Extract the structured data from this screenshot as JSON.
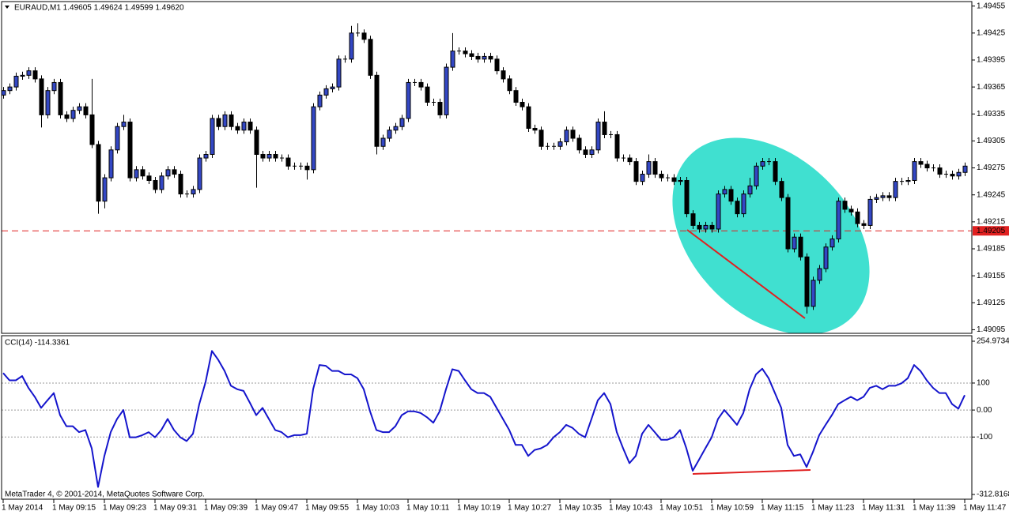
{
  "chart_data": [
    {
      "type": "candlestick",
      "title": "EURAUD,M1  1.49605 1.49624 1.49599 1.49620",
      "up_color": "#3347c4",
      "down_color": "#000000",
      "price_line": 1.49205,
      "price_line_color": "#e02020",
      "ylim": [
        1.49091,
        1.4946
      ],
      "yticks": [
        1.49455,
        1.49425,
        1.49395,
        1.49365,
        1.49335,
        1.49305,
        1.49275,
        1.49245,
        1.49215,
        1.49185,
        1.49155,
        1.49125,
        1.49095
      ],
      "xticks": [
        {
          "value": 0,
          "label": "1 May 2014"
        },
        {
          "value": 8,
          "label": "1 May 09:15"
        },
        {
          "value": 16,
          "label": "1 May 09:23"
        },
        {
          "value": 24,
          "label": "1 May 09:31"
        },
        {
          "value": 32,
          "label": "1 May 09:39"
        },
        {
          "value": 40,
          "label": "1 May 09:47"
        },
        {
          "value": 48,
          "label": "1 May 09:55"
        },
        {
          "value": 56,
          "label": "1 May 10:03"
        },
        {
          "value": 64,
          "label": "1 May 10:11"
        },
        {
          "value": 72,
          "label": "1 May 10:19"
        },
        {
          "value": 80,
          "label": "1 May 10:27"
        },
        {
          "value": 88,
          "label": "1 May 10:35"
        },
        {
          "value": 96,
          "label": "1 May 10:43"
        },
        {
          "value": 104,
          "label": "1 May 10:51"
        },
        {
          "value": 112,
          "label": "1 May 10:59"
        },
        {
          "value": 120,
          "label": "1 May 11:15"
        },
        {
          "value": 128,
          "label": "1 May 11:23"
        },
        {
          "value": 136,
          "label": "1 May 11:31"
        },
        {
          "value": 144,
          "label": "1 May 11:39"
        },
        {
          "value": 152,
          "label": "1 May 11:47"
        }
      ],
      "ohlc": [
        [
          1.49356,
          1.49365,
          1.49352,
          1.49361
        ],
        [
          1.49361,
          1.49369,
          1.49357,
          1.49365
        ],
        [
          1.49365,
          1.49381,
          1.49361,
          1.49377
        ],
        [
          1.49377,
          1.49382,
          1.49373,
          1.49378
        ],
        [
          1.49378,
          1.49387,
          1.49374,
          1.49383
        ],
        [
          1.49383,
          1.49387,
          1.4937,
          1.49374
        ],
        [
          1.49374,
          1.49378,
          1.4932,
          1.49334
        ],
        [
          1.49334,
          1.49365,
          1.4933,
          1.49361
        ],
        [
          1.49361,
          1.49374,
          1.49357,
          1.4937
        ],
        [
          1.4937,
          1.49374,
          1.4933,
          1.49334
        ],
        [
          1.49334,
          1.49338,
          1.49326,
          1.4933
        ],
        [
          1.4933,
          1.49343,
          1.49326,
          1.49339
        ],
        [
          1.49339,
          1.49347,
          1.49335,
          1.49343
        ],
        [
          1.49343,
          1.49347,
          1.4933,
          1.49334
        ],
        [
          1.49334,
          1.49374,
          1.49297,
          1.49301
        ],
        [
          1.49301,
          1.49305,
          1.49224,
          1.49238
        ],
        [
          1.49238,
          1.49268,
          1.4923,
          1.49264
        ],
        [
          1.49264,
          1.49299,
          1.4926,
          1.49295
        ],
        [
          1.49295,
          1.49325,
          1.49291,
          1.49321
        ],
        [
          1.49321,
          1.49334,
          1.49317,
          1.49326
        ],
        [
          1.49326,
          1.4933,
          1.4926,
          1.49264
        ],
        [
          1.49264,
          1.49277,
          1.4926,
          1.49273
        ],
        [
          1.49273,
          1.49277,
          1.49262,
          1.49266
        ],
        [
          1.49266,
          1.4927,
          1.49257,
          1.49261
        ],
        [
          1.49261,
          1.49265,
          1.49247,
          1.49251
        ],
        [
          1.49251,
          1.4927,
          1.49247,
          1.49266
        ],
        [
          1.49266,
          1.49277,
          1.49262,
          1.49273
        ],
        [
          1.49273,
          1.49277,
          1.49264,
          1.49268
        ],
        [
          1.49268,
          1.49272,
          1.49242,
          1.49246
        ],
        [
          1.49246,
          1.4925,
          1.49242,
          1.49246
        ],
        [
          1.49246,
          1.49255,
          1.49242,
          1.49251
        ],
        [
          1.49251,
          1.4929,
          1.49247,
          1.49286
        ],
        [
          1.49286,
          1.49294,
          1.49282,
          1.4929
        ],
        [
          1.4929,
          1.49334,
          1.49286,
          1.4933
        ],
        [
          1.4933,
          1.49334,
          1.49317,
          1.49321
        ],
        [
          1.49321,
          1.49338,
          1.49317,
          1.49334
        ],
        [
          1.49334,
          1.49338,
          1.49317,
          1.49321
        ],
        [
          1.49321,
          1.49325,
          1.49313,
          1.49317
        ],
        [
          1.49317,
          1.4933,
          1.49313,
          1.49326
        ],
        [
          1.49326,
          1.4933,
          1.49313,
          1.49317
        ],
        [
          1.49317,
          1.49321,
          1.49253,
          1.4929
        ],
        [
          1.4929,
          1.49294,
          1.49282,
          1.49286
        ],
        [
          1.49286,
          1.49294,
          1.49282,
          1.4929
        ],
        [
          1.4929,
          1.49294,
          1.49282,
          1.49286
        ],
        [
          1.49286,
          1.4929,
          1.49282,
          1.49286
        ],
        [
          1.49286,
          1.4929,
          1.49273,
          1.49277
        ],
        [
          1.49277,
          1.49281,
          1.49273,
          1.49277
        ],
        [
          1.49277,
          1.49281,
          1.49273,
          1.49277
        ],
        [
          1.49277,
          1.49281,
          1.49262,
          1.49273
        ],
        [
          1.49273,
          1.49347,
          1.49269,
          1.49343
        ],
        [
          1.49343,
          1.4936,
          1.49339,
          1.49356
        ],
        [
          1.49356,
          1.49367,
          1.49352,
          1.49363
        ],
        [
          1.49363,
          1.49369,
          1.49359,
          1.49365
        ],
        [
          1.49365,
          1.494,
          1.49361,
          1.49396
        ],
        [
          1.49396,
          1.494,
          1.49392,
          1.49396
        ],
        [
          1.49396,
          1.49433,
          1.49392,
          1.49425
        ],
        [
          1.49425,
          1.49436,
          1.49421,
          1.49425
        ],
        [
          1.49425,
          1.49429,
          1.49414,
          1.49418
        ],
        [
          1.49418,
          1.49422,
          1.49374,
          1.49378
        ],
        [
          1.49378,
          1.49382,
          1.4929,
          1.49299
        ],
        [
          1.49299,
          1.49312,
          1.49295,
          1.49308
        ],
        [
          1.49308,
          1.49321,
          1.49304,
          1.49317
        ],
        [
          1.49317,
          1.49325,
          1.49313,
          1.49321
        ],
        [
          1.49321,
          1.49334,
          1.49317,
          1.4933
        ],
        [
          1.4933,
          1.49374,
          1.49326,
          1.4937
        ],
        [
          1.4937,
          1.49374,
          1.49366,
          1.4937
        ],
        [
          1.4937,
          1.49374,
          1.49361,
          1.49365
        ],
        [
          1.49365,
          1.49369,
          1.49344,
          1.49348
        ],
        [
          1.49348,
          1.49352,
          1.49344,
          1.49348
        ],
        [
          1.49348,
          1.49352,
          1.4933,
          1.49334
        ],
        [
          1.49334,
          1.49391,
          1.4933,
          1.49387
        ],
        [
          1.49387,
          1.49425,
          1.49383,
          1.49405
        ],
        [
          1.49405,
          1.49409,
          1.49401,
          1.49405
        ],
        [
          1.49405,
          1.49409,
          1.49398,
          1.49402
        ],
        [
          1.49402,
          1.49406,
          1.49395,
          1.49399
        ],
        [
          1.49399,
          1.49403,
          1.49392,
          1.49396
        ],
        [
          1.49396,
          1.49403,
          1.49392,
          1.49399
        ],
        [
          1.49399,
          1.49403,
          1.49392,
          1.49396
        ],
        [
          1.49396,
          1.494,
          1.49379,
          1.49383
        ],
        [
          1.49383,
          1.49387,
          1.4937,
          1.49374
        ],
        [
          1.49374,
          1.49378,
          1.49357,
          1.49361
        ],
        [
          1.49361,
          1.49365,
          1.49344,
          1.49348
        ],
        [
          1.49348,
          1.49352,
          1.49339,
          1.49343
        ],
        [
          1.49343,
          1.49347,
          1.49315,
          1.49319
        ],
        [
          1.49319,
          1.49323,
          1.49313,
          1.49317
        ],
        [
          1.49317,
          1.49321,
          1.49295,
          1.49299
        ],
        [
          1.49299,
          1.49303,
          1.49295,
          1.49299
        ],
        [
          1.49299,
          1.49303,
          1.49295,
          1.49299
        ],
        [
          1.49299,
          1.49308,
          1.49295,
          1.49304
        ],
        [
          1.49304,
          1.49321,
          1.493,
          1.49317
        ],
        [
          1.49317,
          1.49321,
          1.49304,
          1.49308
        ],
        [
          1.49308,
          1.49312,
          1.49291,
          1.49295
        ],
        [
          1.49295,
          1.49299,
          1.49286,
          1.4929
        ],
        [
          1.4929,
          1.49299,
          1.49286,
          1.49295
        ],
        [
          1.49295,
          1.4933,
          1.49291,
          1.49326
        ],
        [
          1.49326,
          1.49338,
          1.49308,
          1.49312
        ],
        [
          1.49312,
          1.49316,
          1.49308,
          1.49312
        ],
        [
          1.49312,
          1.49316,
          1.49282,
          1.49286
        ],
        [
          1.49286,
          1.4929,
          1.49282,
          1.49286
        ],
        [
          1.49286,
          1.4929,
          1.49278,
          1.49282
        ],
        [
          1.49282,
          1.49286,
          1.49256,
          1.4926
        ],
        [
          1.4926,
          1.49272,
          1.49256,
          1.49268
        ],
        [
          1.49268,
          1.4929,
          1.49264,
          1.49282
        ],
        [
          1.49282,
          1.49286,
          1.49264,
          1.49268
        ],
        [
          1.49268,
          1.49272,
          1.4926,
          1.49264
        ],
        [
          1.49264,
          1.49268,
          1.4926,
          1.49264
        ],
        [
          1.49264,
          1.49268,
          1.49256,
          1.4926
        ],
        [
          1.4926,
          1.49265,
          1.49256,
          1.49261
        ],
        [
          1.49261,
          1.49265,
          1.4922,
          1.49224
        ],
        [
          1.49224,
          1.49228,
          1.49207,
          1.49211
        ],
        [
          1.49211,
          1.49215,
          1.49203,
          1.49207
        ],
        [
          1.49207,
          1.49215,
          1.49203,
          1.49211
        ],
        [
          1.49211,
          1.49215,
          1.49203,
          1.49207
        ],
        [
          1.49207,
          1.4925,
          1.49203,
          1.49246
        ],
        [
          1.49246,
          1.49255,
          1.49242,
          1.49251
        ],
        [
          1.49251,
          1.49255,
          1.49234,
          1.49238
        ],
        [
          1.49238,
          1.49242,
          1.4922,
          1.49224
        ],
        [
          1.49224,
          1.4925,
          1.4922,
          1.49246
        ],
        [
          1.49246,
          1.49264,
          1.49242,
          1.49255
        ],
        [
          1.49255,
          1.49281,
          1.49251,
          1.49277
        ],
        [
          1.49277,
          1.49286,
          1.49273,
          1.49282
        ],
        [
          1.49282,
          1.49286,
          1.49278,
          1.49282
        ],
        [
          1.49282,
          1.49286,
          1.49256,
          1.4926
        ],
        [
          1.4926,
          1.49264,
          1.49238,
          1.49242
        ],
        [
          1.49242,
          1.49246,
          1.49181,
          1.49185
        ],
        [
          1.49185,
          1.49202,
          1.49181,
          1.49198
        ],
        [
          1.49198,
          1.49202,
          1.49172,
          1.49176
        ],
        [
          1.49176,
          1.4918,
          1.49113,
          1.49121
        ],
        [
          1.49121,
          1.49154,
          1.49117,
          1.4915
        ],
        [
          1.4915,
          1.49167,
          1.49146,
          1.49163
        ],
        [
          1.49163,
          1.49191,
          1.49159,
          1.49187
        ],
        [
          1.49187,
          1.492,
          1.49183,
          1.49196
        ],
        [
          1.49196,
          1.49242,
          1.49192,
          1.49238
        ],
        [
          1.49238,
          1.49242,
          1.49225,
          1.49229
        ],
        [
          1.49229,
          1.49233,
          1.49222,
          1.49226
        ],
        [
          1.49226,
          1.4923,
          1.49209,
          1.49213
        ],
        [
          1.49213,
          1.49217,
          1.49207,
          1.49211
        ],
        [
          1.49211,
          1.49244,
          1.49207,
          1.4924
        ],
        [
          1.4924,
          1.49246,
          1.49236,
          1.49242
        ],
        [
          1.49242,
          1.49248,
          1.49238,
          1.49244
        ],
        [
          1.49244,
          1.49248,
          1.49238,
          1.49242
        ],
        [
          1.49242,
          1.49264,
          1.49238,
          1.4926
        ],
        [
          1.4926,
          1.49264,
          1.49256,
          1.4926
        ],
        [
          1.4926,
          1.49265,
          1.49256,
          1.49261
        ],
        [
          1.49261,
          1.49286,
          1.49257,
          1.49282
        ],
        [
          1.49282,
          1.49286,
          1.49275,
          1.49279
        ],
        [
          1.49279,
          1.49283,
          1.49271,
          1.49275
        ],
        [
          1.49275,
          1.49279,
          1.49271,
          1.49275
        ],
        [
          1.49275,
          1.49279,
          1.49264,
          1.49268
        ],
        [
          1.49268,
          1.49272,
          1.49264,
          1.49268
        ],
        [
          1.49268,
          1.49272,
          1.49262,
          1.49266
        ],
        [
          1.49266,
          1.49274,
          1.49262,
          1.4927
        ],
        [
          1.4927,
          1.49281,
          1.49266,
          1.49277
        ]
      ]
    },
    {
      "type": "line",
      "title": "CCI(14) -114.3361",
      "color": "#1414cc",
      "ylim": [
        -312.8168,
        254.9734
      ],
      "yticks": [
        254.9734,
        100,
        {
          "value": 0,
          "label": "0.00"
        },
        -100,
        -312.8168
      ],
      "values": [
        137,
        110,
        110,
        126,
        82,
        49,
        8,
        36,
        63,
        -19,
        -60,
        -60,
        -82,
        -74,
        -142,
        -285,
        -170,
        -82,
        -33,
        0,
        -101,
        -101,
        -93,
        -82,
        -101,
        -74,
        -33,
        -74,
        -101,
        -115,
        -88,
        22,
        104,
        219,
        186,
        145,
        90,
        77,
        71,
        27,
        -19,
        8,
        -33,
        -74,
        -82,
        -101,
        -93,
        -93,
        -88,
        77,
        167,
        164,
        145,
        145,
        132,
        132,
        118,
        77,
        -5,
        -74,
        -82,
        -82,
        -60,
        -19,
        -5,
        -5,
        -11,
        -27,
        -47,
        -5,
        77,
        151,
        145,
        110,
        77,
        63,
        63,
        49,
        8,
        -33,
        -74,
        -129,
        -129,
        -170,
        -148,
        -142,
        -129,
        -101,
        -82,
        -55,
        -66,
        -88,
        -101,
        -33,
        36,
        63,
        22,
        -82,
        -142,
        -197,
        -170,
        -88,
        -55,
        -82,
        -110,
        -110,
        -101,
        -74,
        -142,
        -225,
        -184,
        -142,
        -101,
        -33,
        0,
        -27,
        -55,
        -11,
        77,
        132,
        153,
        118,
        63,
        8,
        -129,
        -170,
        -164,
        -211,
        -156,
        -93,
        -55,
        -19,
        22,
        36,
        49,
        36,
        49,
        82,
        90,
        77,
        90,
        90,
        99,
        118,
        167,
        145,
        110,
        82,
        63,
        63,
        22,
        5,
        55
      ]
    }
  ],
  "footer": "MetaTrader 4, © 2001-2014, MetaQuotes Software Corp."
}
